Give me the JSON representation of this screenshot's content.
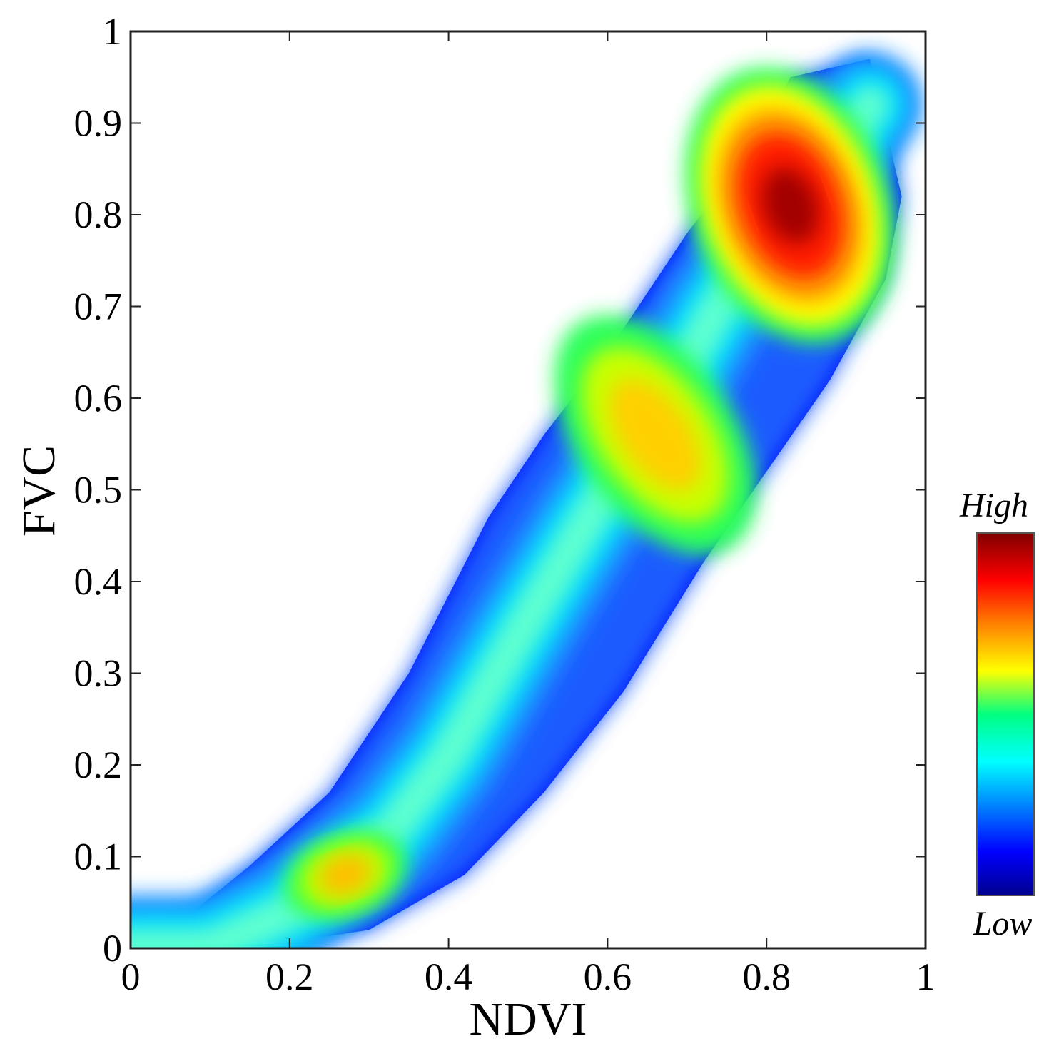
{
  "chart_data": {
    "type": "scatter",
    "subtype": "density scatter",
    "xlabel": "NDVI",
    "ylabel": "FVC",
    "xlim": [
      0,
      1
    ],
    "ylim": [
      0,
      1
    ],
    "x_ticks": [
      0,
      0.2,
      0.4,
      0.6,
      0.8,
      1
    ],
    "x_tick_labels": [
      "0",
      "0.2",
      "0.4",
      "0.6",
      "0.8",
      "1"
    ],
    "y_ticks": [
      0,
      0.1,
      0.2,
      0.3,
      0.4,
      0.5,
      0.6,
      0.7,
      0.8,
      0.9,
      1
    ],
    "y_tick_labels": [
      "0",
      "0.1",
      "0.2",
      "0.3",
      "0.4",
      "0.5",
      "0.6",
      "0.7",
      "0.8",
      "0.9",
      "1"
    ],
    "grid": false,
    "colorbar": {
      "high_label": "High",
      "low_label": "Low",
      "colormap": "jet",
      "placement": "right"
    },
    "density_centerline": [
      [
        0.0,
        0.0
      ],
      [
        0.1,
        0.0
      ],
      [
        0.2,
        0.04
      ],
      [
        0.26,
        0.08
      ],
      [
        0.33,
        0.13
      ],
      [
        0.4,
        0.21
      ],
      [
        0.48,
        0.33
      ],
      [
        0.57,
        0.46
      ],
      [
        0.66,
        0.58
      ],
      [
        0.74,
        0.7
      ],
      [
        0.83,
        0.8
      ],
      [
        0.9,
        0.88
      ],
      [
        0.93,
        0.92
      ]
    ],
    "density_lower_edge": [
      [
        0.0,
        0.0
      ],
      [
        0.15,
        0.0
      ],
      [
        0.3,
        0.02
      ],
      [
        0.42,
        0.08
      ],
      [
        0.52,
        0.17
      ],
      [
        0.62,
        0.28
      ],
      [
        0.72,
        0.42
      ],
      [
        0.8,
        0.52
      ],
      [
        0.88,
        0.62
      ],
      [
        0.95,
        0.73
      ],
      [
        0.97,
        0.82
      ]
    ],
    "density_upper_edge": [
      [
        0.0,
        0.0
      ],
      [
        0.05,
        0.02
      ],
      [
        0.15,
        0.09
      ],
      [
        0.25,
        0.17
      ],
      [
        0.35,
        0.3
      ],
      [
        0.45,
        0.47
      ],
      [
        0.52,
        0.56
      ],
      [
        0.6,
        0.65
      ],
      [
        0.7,
        0.78
      ],
      [
        0.78,
        0.87
      ],
      [
        0.83,
        0.95
      ],
      [
        0.93,
        0.97
      ]
    ],
    "density_peaks": [
      {
        "x": 0.83,
        "y": 0.81,
        "level": "high"
      },
      {
        "x": 0.66,
        "y": 0.56,
        "level": "medium-high"
      },
      {
        "x": 0.27,
        "y": 0.08,
        "level": "medium"
      }
    ]
  }
}
